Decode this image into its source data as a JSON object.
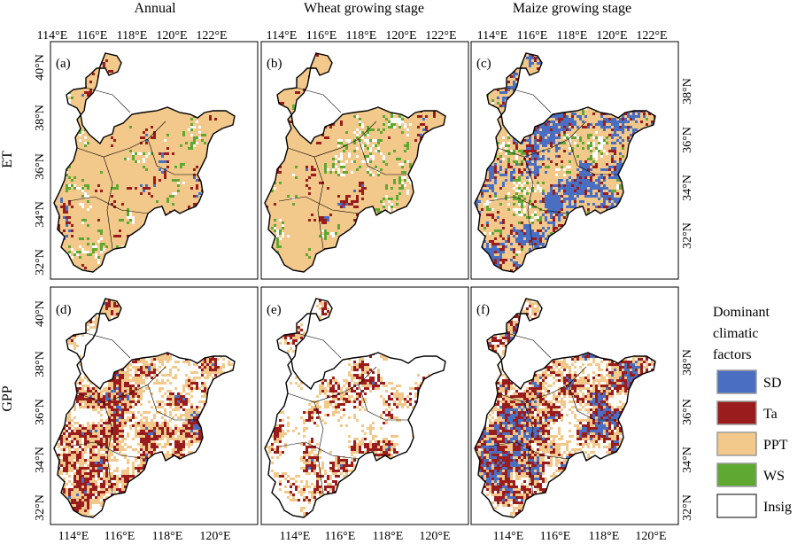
{
  "column_titles": [
    "Annual",
    "Wheat growing stage",
    "Maize growing stage"
  ],
  "row_labels": [
    "ET",
    "GPP"
  ],
  "panel_labels": [
    "(a)",
    "(b)",
    "(c)",
    "(d)",
    "(e)",
    "(f)"
  ],
  "top_lon_ticks": [
    "114°E",
    "116°E",
    "118°E",
    "120°E",
    "122°E"
  ],
  "bottom_lon_ticks": [
    "114°E",
    "116°E",
    "118°E",
    "120°E"
  ],
  "left_lat_ticks": [
    "32°N",
    "34°N",
    "36°N",
    "38°N",
    "40°N"
  ],
  "right_lat_ticks": [
    "32°N",
    "34°N",
    "36°N",
    "38°N"
  ],
  "legend": {
    "title_lines": [
      "Dominant",
      "climatic",
      "factors"
    ],
    "items": [
      {
        "label": "SD",
        "color": "#4a6fc2"
      },
      {
        "label": "Ta",
        "color": "#9a1c1c"
      },
      {
        "label": "PPT",
        "color": "#f2c88b"
      },
      {
        "label": "WS",
        "color": "#5fa832"
      },
      {
        "label": "Insig",
        "color": "#ffffff"
      }
    ]
  },
  "panel_mixes": [
    {
      "SD": 0.14,
      "Ta": 0.1,
      "PPT": 0.52,
      "WS": 0.06,
      "Insig": 0.18
    },
    {
      "SD": 0.1,
      "Ta": 0.11,
      "PPT": 0.55,
      "WS": 0.07,
      "Insig": 0.17
    },
    {
      "SD": 0.4,
      "Ta": 0.05,
      "PPT": 0.3,
      "WS": 0.07,
      "Insig": 0.18
    },
    {
      "SD": 0.15,
      "Ta": 0.22,
      "PPT": 0.18,
      "WS": 0.0,
      "Insig": 0.45
    },
    {
      "SD": 0.09,
      "Ta": 0.22,
      "PPT": 0.12,
      "WS": 0.0,
      "Insig": 0.57
    },
    {
      "SD": 0.28,
      "Ta": 0.16,
      "PPT": 0.16,
      "WS": 0.0,
      "Insig": 0.4
    }
  ]
}
